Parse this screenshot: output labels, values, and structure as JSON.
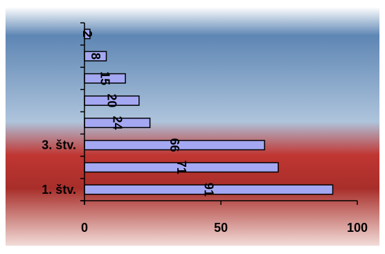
{
  "chart_data": {
    "type": "bar",
    "orientation": "horizontal",
    "categories": [
      "1. štv.",
      "",
      "3. štv.",
      "",
      "",
      "",
      "",
      ""
    ],
    "values": [
      91,
      71,
      66,
      24,
      20,
      15,
      8,
      2
    ],
    "data_labels": [
      "91",
      "71",
      "66",
      "24",
      "20",
      "15",
      "8",
      "2"
    ],
    "title": "",
    "xlabel": "",
    "ylabel": "",
    "xlim": [
      0,
      100
    ],
    "x_ticks": [
      0,
      50,
      100
    ],
    "x_tick_labels": [
      "0",
      "50",
      "100"
    ],
    "grid": false,
    "legend": "none",
    "colors": {
      "bar_fill": "#a4a8f2",
      "bar_stroke": "#000000",
      "background_top": "#5e86b4",
      "background_bottom": "#a82e2a"
    }
  }
}
